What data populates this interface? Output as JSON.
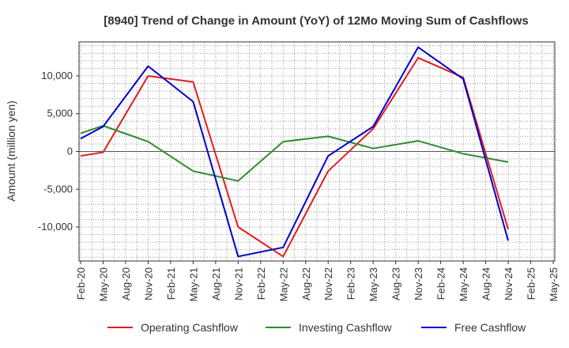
{
  "chart_data": {
    "type": "line",
    "title": "[8940]  Trend of Change in Amount (YoY) of 12Mo Moving Sum of Cashflows",
    "xlabel": "",
    "ylabel": "Amount (million yen)",
    "ylim": [
      -14500,
      14500
    ],
    "yticks": [
      -10000,
      -5000,
      0,
      5000,
      10000
    ],
    "ytick_labels": [
      "-10,000",
      "-5,000",
      "0",
      "5,000",
      "10,000"
    ],
    "categories": [
      "Feb-20",
      "May-20",
      "Aug-20",
      "Nov-20",
      "Feb-21",
      "May-21",
      "Aug-21",
      "Nov-21",
      "Feb-22",
      "May-22",
      "Aug-22",
      "Nov-22",
      "Feb-23",
      "May-23",
      "Aug-23",
      "Nov-23",
      "Feb-24",
      "May-24",
      "Aug-24",
      "Nov-24",
      "Feb-25",
      "May-25"
    ],
    "grid": true,
    "legend_position": "bottom",
    "series": [
      {
        "name": "Operating Cashflow",
        "color": "#e41a1c",
        "points": [
          [
            0,
            -600
          ],
          [
            1,
            -100
          ],
          [
            3,
            10000
          ],
          [
            5,
            9200
          ],
          [
            7,
            -10000
          ],
          [
            9,
            -13900
          ],
          [
            11,
            -2600
          ],
          [
            13,
            3000
          ],
          [
            15,
            12400
          ],
          [
            17,
            9800
          ],
          [
            19,
            -10300
          ]
        ]
      },
      {
        "name": "Investing Cashflow",
        "color": "#2e8b2e",
        "points": [
          [
            0,
            2400
          ],
          [
            1,
            3400
          ],
          [
            3,
            1300
          ],
          [
            5,
            -2600
          ],
          [
            7,
            -3900
          ],
          [
            9,
            1300
          ],
          [
            11,
            2000
          ],
          [
            13,
            400
          ],
          [
            15,
            1400
          ],
          [
            17,
            -300
          ],
          [
            19,
            -1400
          ]
        ]
      },
      {
        "name": "Free Cashflow",
        "color": "#0000cc",
        "points": [
          [
            0,
            1700
          ],
          [
            1,
            3300
          ],
          [
            3,
            11300
          ],
          [
            5,
            6600
          ],
          [
            7,
            -13900
          ],
          [
            9,
            -12700
          ],
          [
            11,
            -600
          ],
          [
            13,
            3300
          ],
          [
            15,
            13800
          ],
          [
            17,
            9600
          ],
          [
            19,
            -11800
          ]
        ]
      }
    ]
  }
}
